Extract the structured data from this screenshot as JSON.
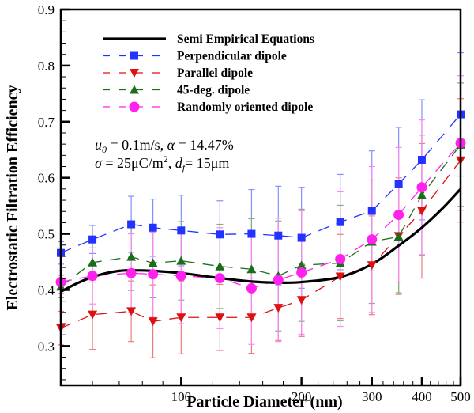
{
  "chart_data": {
    "type": "line",
    "title": "",
    "xlabel": "Particle Diameter (nm)",
    "ylabel": "Electrostatic Filtration Efficiency",
    "xscale": "log",
    "xlim": [
      50,
      500
    ],
    "ylim": [
      0.23,
      0.9
    ],
    "x_ticks": [
      100,
      200,
      300,
      400,
      500
    ],
    "x_tick_labels": [
      "100",
      "200",
      "300",
      "400",
      "500"
    ],
    "y_ticks": [
      0.3,
      0.4,
      0.5,
      0.6,
      0.7,
      0.8,
      0.9
    ],
    "y_tick_labels": [
      "0.3",
      "0.4",
      "0.5",
      "0.6",
      "0.7",
      "0.8",
      "0.9"
    ],
    "grid": false,
    "legend_position": "top-left",
    "annotations": [
      "u0 = 0.1m/s,  α = 14.47%",
      "σ = 25μC/m², df = 15μm"
    ],
    "x": [
      50,
      60,
      75,
      85,
      100,
      125,
      150,
      175,
      200,
      250,
      300,
      350,
      400,
      500
    ],
    "series": [
      {
        "name": "Semi Empirical Equations",
        "style": "solid",
        "marker": "none",
        "color": "#000000",
        "x": [
          50,
          55,
          60,
          65,
          70,
          75,
          85,
          100,
          125,
          150,
          175,
          200,
          250,
          300,
          350,
          400,
          450,
          500
        ],
        "values": [
          0.397,
          0.412,
          0.423,
          0.43,
          0.434,
          0.435,
          0.434,
          0.43,
          0.421,
          0.415,
          0.413,
          0.414,
          0.423,
          0.446,
          0.479,
          0.511,
          0.545,
          0.58
        ]
      },
      {
        "name": "Perpendicular dipole",
        "style": "dashed",
        "marker": "square",
        "color": "#2233ff",
        "values": [
          0.466,
          0.49,
          0.517,
          0.511,
          0.506,
          0.499,
          0.5,
          0.497,
          0.493,
          0.521,
          0.541,
          0.589,
          0.632,
          0.713
        ],
        "error": [
          0.02,
          0.025,
          0.05,
          0.051,
          0.063,
          0.06,
          0.079,
          0.088,
          0.09,
          0.085,
          0.107,
          0.101,
          0.107,
          0.11
        ]
      },
      {
        "name": "Parallel dipole",
        "style": "dashed",
        "marker": "triangle-down",
        "color": "#dd1111",
        "values": [
          0.332,
          0.356,
          0.362,
          0.344,
          0.351,
          0.351,
          0.351,
          0.368,
          0.382,
          0.424,
          0.444,
          0.496,
          0.541,
          0.631
        ],
        "error": [
          0.03,
          0.062,
          0.054,
          0.065,
          0.065,
          0.059,
          0.064,
          0.058,
          0.065,
          0.075,
          0.088,
          0.104,
          0.12,
          0.11
        ]
      },
      {
        "name": "45-deg. dipole",
        "style": "dashed",
        "marker": "triangle-up",
        "color": "#1a6e1a",
        "values": [
          0.406,
          0.449,
          0.459,
          0.448,
          0.452,
          0.442,
          0.437,
          0.425,
          0.444,
          0.448,
          0.486,
          0.495,
          0.569,
          0.659
        ],
        "error": [
          0.02,
          0.035,
          0.06,
          0.062,
          0.07,
          0.075,
          0.09,
          0.098,
          0.1,
          0.103,
          0.11,
          0.1,
          0.107,
          0.11
        ]
      },
      {
        "name": "Randomly oriented dipole",
        "style": "dashed",
        "marker": "circle",
        "color": "#ff22ee",
        "values": [
          0.414,
          0.425,
          0.43,
          0.428,
          0.425,
          0.421,
          0.403,
          0.418,
          0.431,
          0.455,
          0.49,
          0.534,
          0.583,
          0.662
        ],
        "error": [
          0.02,
          0.05,
          0.07,
          0.075,
          0.085,
          0.09,
          0.1,
          0.11,
          0.11,
          0.12,
          0.13,
          0.12,
          0.12,
          0.12
        ]
      }
    ]
  }
}
